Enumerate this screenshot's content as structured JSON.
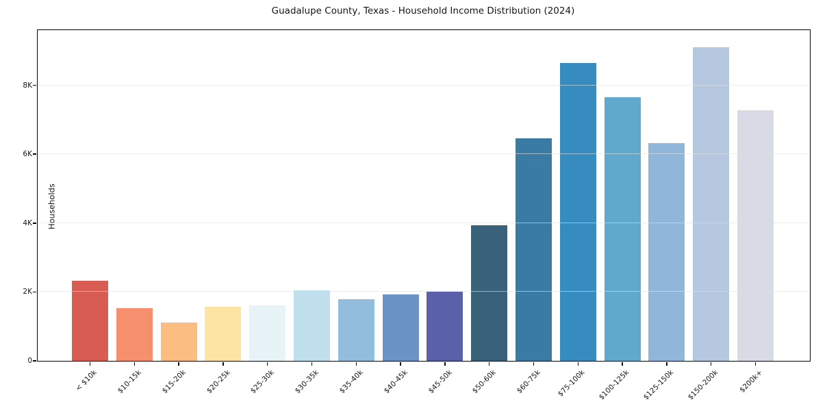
{
  "chart_data": {
    "type": "bar",
    "title": "Guadalupe County, Texas - Household Income Distribution (2024)",
    "xlabel": "",
    "ylabel": "Households",
    "categories": [
      "< $10k",
      "$10-15k",
      "$15-20k",
      "$20-25k",
      "$25-30k",
      "$30-35k",
      "$35-40k",
      "$40-45k",
      "$45-50k",
      "$50-60k",
      "$60-75k",
      "$75-100k",
      "$100-125k",
      "$125-150k",
      "$150-200k",
      "$200k+"
    ],
    "values": [
      2330,
      1530,
      1115,
      1570,
      1610,
      2050,
      1790,
      1930,
      2010,
      3940,
      6450,
      8650,
      7660,
      6330,
      9100,
      7280
    ],
    "bar_colors": [
      "#d85c52",
      "#f58f6d",
      "#fbbd80",
      "#fde3a4",
      "#e7f3f6",
      "#c0dfec",
      "#93bddc",
      "#6b93c5",
      "#5a60a9",
      "#39617a",
      "#3a7ba3",
      "#368cbf",
      "#60a8cc",
      "#90b7d9",
      "#b6c8e0",
      "#d8dae6"
    ],
    "yticks": [
      {
        "value": 0,
        "label": "0"
      },
      {
        "value": 2000,
        "label": "2K"
      },
      {
        "value": 4000,
        "label": "4K"
      },
      {
        "value": 6000,
        "label": "6K"
      },
      {
        "value": 8000,
        "label": "8K"
      }
    ],
    "ylim": [
      0,
      9600
    ],
    "grid": "horizontal",
    "legend": "none",
    "colors": {
      "background": "#ffffff",
      "spine": "#000000",
      "gridline": "#e0e0e0",
      "text": "#151515"
    }
  }
}
